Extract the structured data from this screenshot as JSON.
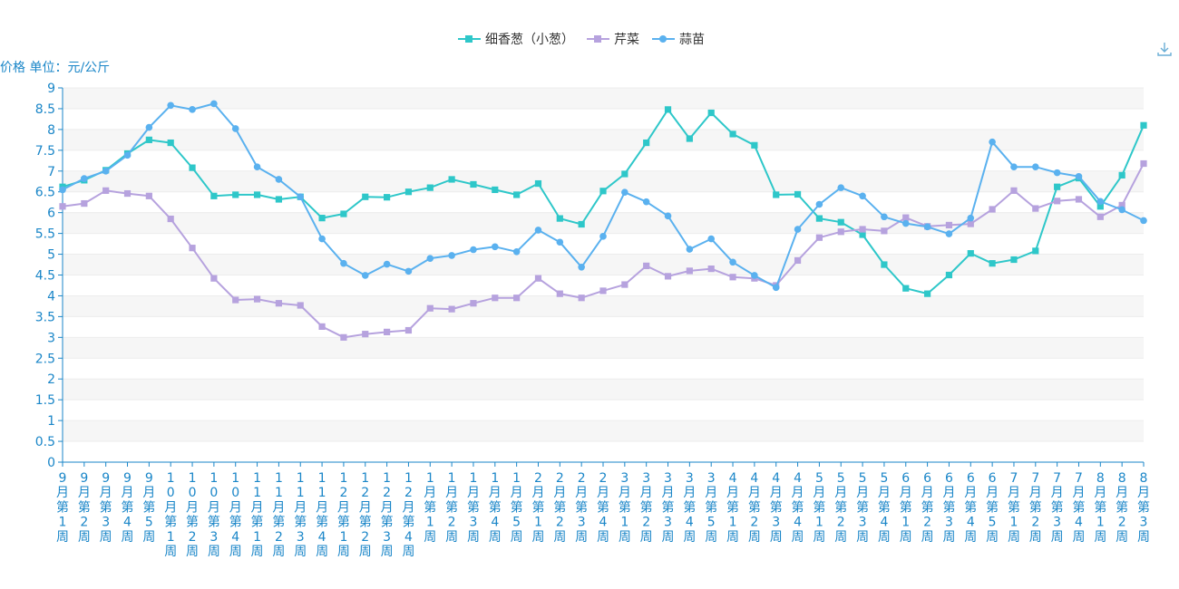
{
  "chart_data": {
    "type": "line",
    "ylabel": "价格 单位：元/公斤",
    "ylim": [
      0,
      9
    ],
    "yticks": [
      "0",
      "0.5",
      "1",
      "1.5",
      "2",
      "2.5",
      "3",
      "3.5",
      "4",
      "4.5",
      "5",
      "5.5",
      "6",
      "6.5",
      "7",
      "7.5",
      "8",
      "8.5",
      "9"
    ],
    "grid": true,
    "legend_position": "top-center",
    "categories": [
      "9月第1周",
      "9月第2周",
      "9月第3周",
      "9月第4周",
      "9月第5周",
      "10月第1周",
      "10月第2周",
      "10月第3周",
      "10月第4周",
      "11月第1周",
      "11月第2周",
      "11月第3周",
      "11月第4周",
      "12月第1周",
      "12月第2周",
      "12月第3周",
      "12月第4周",
      "1月第1周",
      "1月第2周",
      "1月第3周",
      "1月第4周",
      "1月第5周",
      "2月第1周",
      "2月第2周",
      "2月第3周",
      "2月第4周",
      "3月第1周",
      "3月第2周",
      "3月第3周",
      "3月第4周",
      "3月第5周",
      "4月第1周",
      "4月第2周",
      "4月第3周",
      "4月第4周",
      "5月第1周",
      "5月第2周",
      "5月第3周",
      "5月第4周",
      "6月第1周",
      "6月第2周",
      "6月第3周",
      "6月第4周",
      "6月第5周",
      "7月第1周",
      "7月第2周",
      "7月第3周",
      "7月第4周",
      "8月第1周",
      "8月第2周",
      "8月第3周"
    ],
    "series": [
      {
        "name": "细香葱（小葱）",
        "color": "#2ec7c9",
        "marker": "square",
        "values": [
          6.62,
          6.78,
          7.02,
          7.42,
          7.75,
          7.68,
          7.08,
          6.4,
          6.43,
          6.43,
          6.32,
          6.38,
          5.87,
          5.97,
          6.38,
          6.37,
          6.5,
          6.6,
          6.8,
          6.68,
          6.55,
          6.43,
          6.7,
          5.86,
          5.72,
          6.52,
          6.93,
          7.68,
          8.48,
          7.78,
          8.4,
          7.89,
          7.62,
          6.43,
          6.44,
          5.86,
          5.77,
          5.47,
          4.75,
          4.18,
          4.05,
          4.5,
          5.02,
          4.78,
          4.87,
          5.08,
          6.62,
          6.83,
          6.15,
          6.9,
          8.1
        ]
      },
      {
        "name": "芹菜",
        "color": "#b6a2de",
        "marker": "square",
        "values": [
          6.15,
          6.22,
          6.53,
          6.46,
          6.4,
          5.85,
          5.15,
          4.42,
          3.9,
          3.92,
          3.82,
          3.77,
          3.26,
          3.0,
          3.08,
          3.13,
          3.17,
          3.7,
          3.68,
          3.82,
          3.95,
          3.95,
          4.42,
          4.05,
          3.95,
          4.12,
          4.27,
          4.72,
          4.47,
          4.6,
          4.65,
          4.45,
          4.42,
          4.25,
          4.85,
          5.4,
          5.54,
          5.6,
          5.56,
          5.88,
          5.67,
          5.7,
          5.73,
          6.08,
          6.53,
          6.1,
          6.28,
          6.32,
          5.9,
          6.18,
          7.18
        ]
      },
      {
        "name": "蒜苗",
        "color": "#5ab1ef",
        "marker": "circle",
        "values": [
          6.55,
          6.82,
          7.0,
          7.38,
          8.05,
          8.58,
          8.48,
          8.62,
          8.02,
          7.1,
          6.8,
          6.38,
          5.37,
          4.78,
          4.49,
          4.76,
          4.59,
          4.9,
          4.97,
          5.11,
          5.18,
          5.06,
          5.58,
          5.29,
          4.69,
          5.43,
          6.49,
          6.26,
          5.92,
          5.12,
          5.37,
          4.81,
          4.49,
          4.2,
          5.6,
          6.2,
          6.6,
          6.4,
          5.9,
          5.74,
          5.66,
          5.49,
          5.87,
          7.7,
          7.1,
          7.1,
          6.96,
          6.87,
          6.27,
          6.07,
          5.81
        ]
      }
    ]
  },
  "icons": {
    "download": "download-icon"
  }
}
